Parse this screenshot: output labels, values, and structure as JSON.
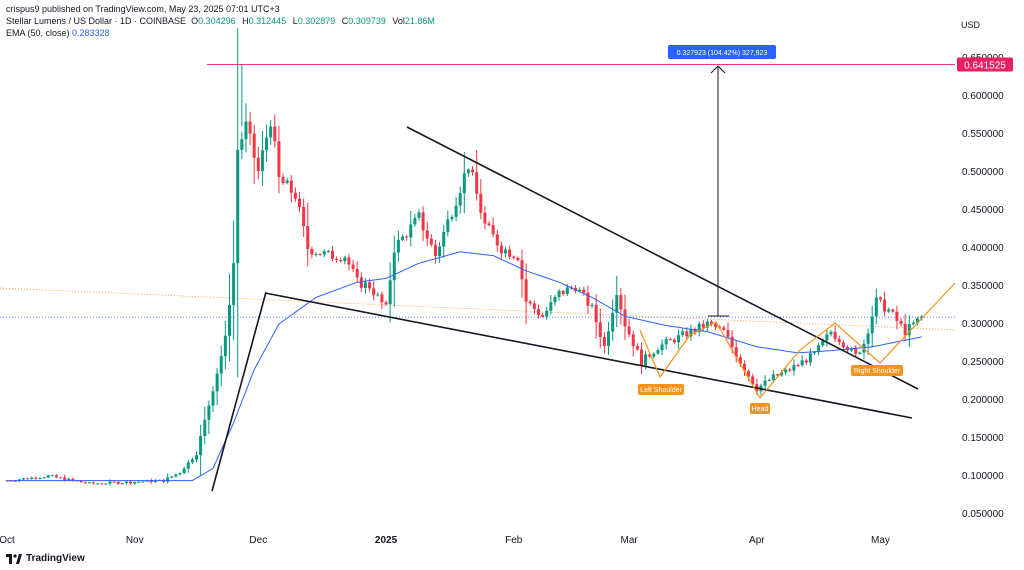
{
  "published": "crispus9 published on TradingView.com, May 23, 2025 07:01 UTC+3",
  "symbol_line": {
    "name": "Stellar Lumens / US Dollar · 1D · COINBASE",
    "o_label": "O",
    "o": "0.304296",
    "h_label": "H",
    "h": "0.312445",
    "l_label": "L",
    "l": "0.302879",
    "c_label": "C",
    "c": "0.309739",
    "vol_label": "Vol",
    "vol": "21.86M"
  },
  "ema_line": {
    "label": "EMA (50, close)",
    "value": "0.283328"
  },
  "currency": "USD",
  "footer_brand": "TradingView",
  "colors": {
    "up": "#089981",
    "down": "#f23645",
    "ema": "#2962ff",
    "pattern": "#f7931a",
    "target": "#e91e63",
    "measure_label_bg": "#2962ff"
  },
  "chart_data": {
    "type": "candlestick",
    "y_axis_labels": [
      "0.650000",
      "0.600000",
      "0.550000",
      "0.500000",
      "0.450000",
      "0.400000",
      "0.350000",
      "0.300000",
      "0.250000",
      "0.200000",
      "0.150000",
      "0.100000",
      "0.050000"
    ],
    "y_axis_values": [
      0.65,
      0.6,
      0.55,
      0.5,
      0.45,
      0.4,
      0.35,
      0.3,
      0.25,
      0.2,
      0.15,
      0.1,
      0.05
    ],
    "ylim": [
      0.02,
      0.7
    ],
    "x_axis_labels": [
      {
        "label": "Oct",
        "day": 0
      },
      {
        "label": "Nov",
        "day": 31
      },
      {
        "label": "Dec",
        "day": 61
      },
      {
        "label": "2025",
        "day": 92
      },
      {
        "label": "Feb",
        "day": 123
      },
      {
        "label": "Mar",
        "day": 151
      },
      {
        "label": "Apr",
        "day": 182
      },
      {
        "label": "May",
        "day": 212
      }
    ],
    "price_tag": "0.641525",
    "target_price": 0.641525,
    "measure_label": "0.327923 (104.42%) 327,923",
    "pattern_labels": {
      "left_shoulder": "Left Shoulder",
      "head": "Head",
      "right_shoulder": "Right Shoulder"
    },
    "anchors": [
      {
        "day": 0,
        "price": 0.094
      },
      {
        "day": 10,
        "price": 0.1
      },
      {
        "day": 20,
        "price": 0.09
      },
      {
        "day": 30,
        "price": 0.092
      },
      {
        "day": 38,
        "price": 0.094
      },
      {
        "day": 42,
        "price": 0.105
      },
      {
        "day": 46,
        "price": 0.13
      },
      {
        "day": 50,
        "price": 0.215
      },
      {
        "day": 53,
        "price": 0.28
      },
      {
        "day": 55,
        "price": 0.38
      },
      {
        "day": 56,
        "price": 0.53
      },
      {
        "day": 58,
        "price": 0.56
      },
      {
        "day": 61,
        "price": 0.5
      },
      {
        "day": 64,
        "price": 0.57
      },
      {
        "day": 66,
        "price": 0.49
      },
      {
        "day": 70,
        "price": 0.47
      },
      {
        "day": 73,
        "price": 0.4
      },
      {
        "day": 78,
        "price": 0.39
      },
      {
        "day": 82,
        "price": 0.39
      },
      {
        "day": 85,
        "price": 0.355
      },
      {
        "day": 88,
        "price": 0.35
      },
      {
        "day": 92,
        "price": 0.32
      },
      {
        "day": 94,
        "price": 0.4
      },
      {
        "day": 100,
        "price": 0.44
      },
      {
        "day": 104,
        "price": 0.39
      },
      {
        "day": 108,
        "price": 0.45
      },
      {
        "day": 112,
        "price": 0.51
      },
      {
        "day": 116,
        "price": 0.43
      },
      {
        "day": 120,
        "price": 0.4
      },
      {
        "day": 124,
        "price": 0.39
      },
      {
        "day": 126,
        "price": 0.33
      },
      {
        "day": 130,
        "price": 0.31
      },
      {
        "day": 134,
        "price": 0.34
      },
      {
        "day": 138,
        "price": 0.35
      },
      {
        "day": 142,
        "price": 0.32
      },
      {
        "day": 145,
        "price": 0.27
      },
      {
        "day": 148,
        "price": 0.345
      },
      {
        "day": 150,
        "price": 0.3
      },
      {
        "day": 154,
        "price": 0.25
      },
      {
        "day": 158,
        "price": 0.27
      },
      {
        "day": 164,
        "price": 0.285
      },
      {
        "day": 170,
        "price": 0.3
      },
      {
        "day": 174,
        "price": 0.29
      },
      {
        "day": 178,
        "price": 0.25
      },
      {
        "day": 182,
        "price": 0.215
      },
      {
        "day": 186,
        "price": 0.23
      },
      {
        "day": 190,
        "price": 0.24
      },
      {
        "day": 196,
        "price": 0.26
      },
      {
        "day": 200,
        "price": 0.29
      },
      {
        "day": 203,
        "price": 0.275
      },
      {
        "day": 206,
        "price": 0.258
      },
      {
        "day": 208,
        "price": 0.275
      },
      {
        "day": 211,
        "price": 0.33
      },
      {
        "day": 214,
        "price": 0.318
      },
      {
        "day": 218,
        "price": 0.29
      },
      {
        "day": 222,
        "price": 0.309
      }
    ],
    "last_day": 222,
    "ema_anchors": [
      {
        "day": 0,
        "price": 0.094
      },
      {
        "day": 45,
        "price": 0.094
      },
      {
        "day": 50,
        "price": 0.11
      },
      {
        "day": 55,
        "price": 0.17
      },
      {
        "day": 60,
        "price": 0.24
      },
      {
        "day": 66,
        "price": 0.3
      },
      {
        "day": 75,
        "price": 0.335
      },
      {
        "day": 85,
        "price": 0.355
      },
      {
        "day": 92,
        "price": 0.36
      },
      {
        "day": 100,
        "price": 0.38
      },
      {
        "day": 110,
        "price": 0.395
      },
      {
        "day": 118,
        "price": 0.39
      },
      {
        "day": 126,
        "price": 0.37
      },
      {
        "day": 134,
        "price": 0.355
      },
      {
        "day": 142,
        "price": 0.335
      },
      {
        "day": 150,
        "price": 0.31
      },
      {
        "day": 160,
        "price": 0.298
      },
      {
        "day": 170,
        "price": 0.29
      },
      {
        "day": 182,
        "price": 0.27
      },
      {
        "day": 192,
        "price": 0.262
      },
      {
        "day": 200,
        "price": 0.265
      },
      {
        "day": 210,
        "price": 0.27
      },
      {
        "day": 222,
        "price": 0.283
      }
    ]
  }
}
